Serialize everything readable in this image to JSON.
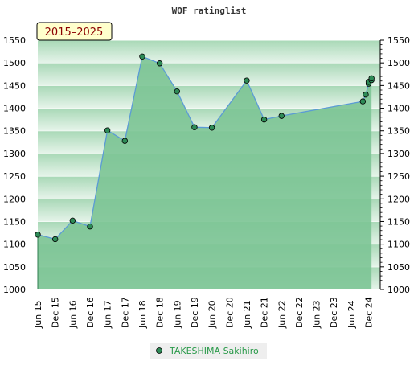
{
  "chart_data": {
    "type": "area",
    "title": "WOF ratinglist",
    "period_label": "2015–2025",
    "ylim": [
      1000,
      1550
    ],
    "ytick_step": 50,
    "right_axis": true,
    "grid": true,
    "x_tick_labels": [
      "Jun 15",
      "Dec 15",
      "Jun 16",
      "Dec 16",
      "Jun 17",
      "Dec 17",
      "Jun 18",
      "Dec 18",
      "Jun 19",
      "Dec 19",
      "Jun 20",
      "Dec 20",
      "Jun 21",
      "Dec 21",
      "Jun 22",
      "Dec 22",
      "Jun 23",
      "Dec 23",
      "Jun 24",
      "Dec 24"
    ],
    "series": [
      {
        "name": "TAKESHIMA Sakihiro",
        "points": [
          {
            "x": "Jun 15",
            "y": 1121
          },
          {
            "x": "Dec 15",
            "y": 1111
          },
          {
            "x": "Jun 16",
            "y": 1152
          },
          {
            "x": "Dec 16",
            "y": 1139
          },
          {
            "x": "Jun 17",
            "y": 1351
          },
          {
            "x": "Dec 17",
            "y": 1328
          },
          {
            "x": "Jun 18",
            "y": 1514
          },
          {
            "x": "Dec 18",
            "y": 1499
          },
          {
            "x": "Jun 19",
            "y": 1437
          },
          {
            "x": "Dec 19",
            "y": 1358
          },
          {
            "x": "Jun 20",
            "y": 1357
          },
          {
            "x": "Jun 21",
            "y": 1461
          },
          {
            "x": "Dec 21",
            "y": 1375
          },
          {
            "x": "Jun 22",
            "y": 1383
          },
          {
            "x": "Oct 24",
            "y": 1415
          },
          {
            "x": "Nov 24",
            "y": 1430
          },
          {
            "x": "Dec 24",
            "y": 1454
          },
          {
            "x": "Dec 24",
            "y": 1458
          },
          {
            "x": "Jan 25",
            "y": 1462
          },
          {
            "x": "Jan 25",
            "y": 1466
          }
        ]
      }
    ],
    "colors": {
      "fill": "#7cc495",
      "line": "#5b9bd5",
      "marker": "#2e8b57",
      "band_light": "#e8f4ec",
      "band_dark": "#c9e6d2",
      "legend_text": "#2a9a4a"
    },
    "legend_position": "bottom-center"
  }
}
